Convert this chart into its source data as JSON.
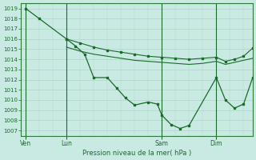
{
  "title": "Pression niveau de la mer( hPa )",
  "background_color": "#c8eae2",
  "grid_color": "#b0d4c8",
  "line_color": "#1a6b2a",
  "ylim": [
    1006.5,
    1019.5
  ],
  "yticks": [
    1007,
    1008,
    1009,
    1010,
    1011,
    1012,
    1013,
    1014,
    1015,
    1016,
    1017,
    1018,
    1019
  ],
  "day_labels": [
    "Ven",
    "Lun",
    "Sam",
    "Dim"
  ],
  "day_positions": [
    0,
    18,
    60,
    84
  ],
  "xlim": [
    -2,
    100
  ],
  "line1_dotted": {
    "x": [
      0,
      6,
      18,
      22,
      26,
      30,
      36,
      40,
      44,
      48,
      54,
      58,
      60,
      64,
      68,
      72,
      84,
      88,
      92,
      96,
      100
    ],
    "y": [
      1019,
      1018,
      1016,
      1015.3,
      1014.5,
      1012.2,
      1012.2,
      1011.2,
      1010.2,
      1009.5,
      1009.8,
      1009.6,
      1008.5,
      1007.6,
      1007.2,
      1007.5,
      1012.2,
      1010.0,
      1009.2,
      1009.6,
      1012.2
    ]
  },
  "line2_flat": {
    "x": [
      18,
      24,
      30,
      36,
      42,
      48,
      54,
      60,
      66,
      72,
      78,
      84,
      88,
      92,
      96,
      100
    ],
    "y": [
      1016.0,
      1015.6,
      1015.2,
      1014.9,
      1014.7,
      1014.5,
      1014.3,
      1014.2,
      1014.1,
      1014.0,
      1014.1,
      1014.2,
      1013.8,
      1014.0,
      1014.3,
      1015.1
    ]
  },
  "line3_flat": {
    "x": [
      18,
      24,
      30,
      36,
      42,
      48,
      54,
      60,
      66,
      72,
      78,
      84,
      88,
      92,
      96,
      100
    ],
    "y": [
      1015.2,
      1014.8,
      1014.5,
      1014.3,
      1014.1,
      1013.9,
      1013.8,
      1013.7,
      1013.6,
      1013.5,
      1013.6,
      1013.8,
      1013.5,
      1013.7,
      1013.9,
      1014.1
    ]
  }
}
